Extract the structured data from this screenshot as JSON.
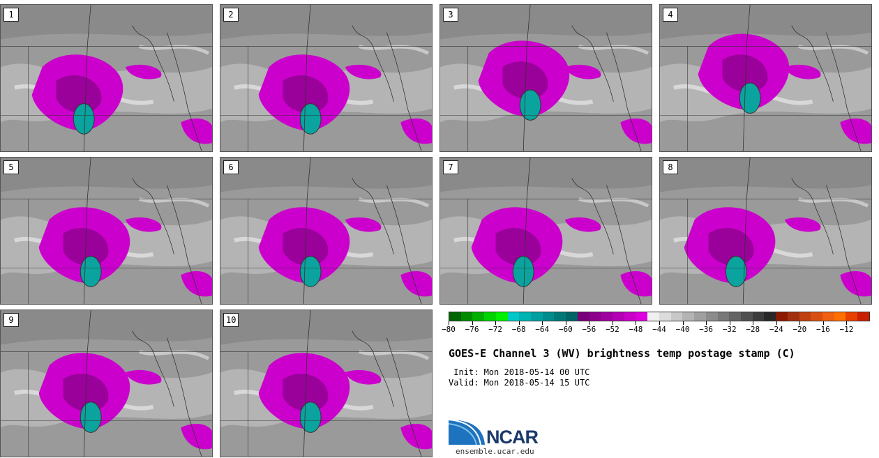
{
  "figure": {
    "title": "GOES-E Channel 3 (WV) brightness temp postage stamp (C)",
    "init_text": " Init: Mon 2018-05-14 00 UTC",
    "valid_text": "Valid: Mon 2018-05-14 15 UTC"
  },
  "panels": [
    {
      "label": "1"
    },
    {
      "label": "2"
    },
    {
      "label": "3"
    },
    {
      "label": "4"
    },
    {
      "label": "5"
    },
    {
      "label": "6"
    },
    {
      "label": "7"
    },
    {
      "label": "8"
    },
    {
      "label": "9"
    },
    {
      "label": "10"
    }
  ],
  "colorbar": {
    "ticks": [
      "−80",
      "−76",
      "−72",
      "−68",
      "−64",
      "−60",
      "−56",
      "−52",
      "−48",
      "−44",
      "−40",
      "−36",
      "−32",
      "−28",
      "−24",
      "−20",
      "−16",
      "−12"
    ],
    "colors": [
      "#006400",
      "#008a00",
      "#00b000",
      "#00d400",
      "#00f000",
      "#00c8c8",
      "#00b4b4",
      "#00a0a0",
      "#008c8c",
      "#007878",
      "#006464",
      "#780078",
      "#8c008c",
      "#a000a0",
      "#b400b4",
      "#c800c8",
      "#dc00dc",
      "#f0f0f0",
      "#dcdcdc",
      "#c8c8c8",
      "#b4b4b4",
      "#a0a0a0",
      "#8c8c8c",
      "#787878",
      "#646464",
      "#505050",
      "#3c3c3c",
      "#282828",
      "#8b1a00",
      "#a03010",
      "#c04010",
      "#d85010",
      "#f06010",
      "#ff7000",
      "#e84000",
      "#c82000"
    ]
  },
  "logo": {
    "name": "NCAR",
    "url": "ensemble.ucar.edu"
  }
}
